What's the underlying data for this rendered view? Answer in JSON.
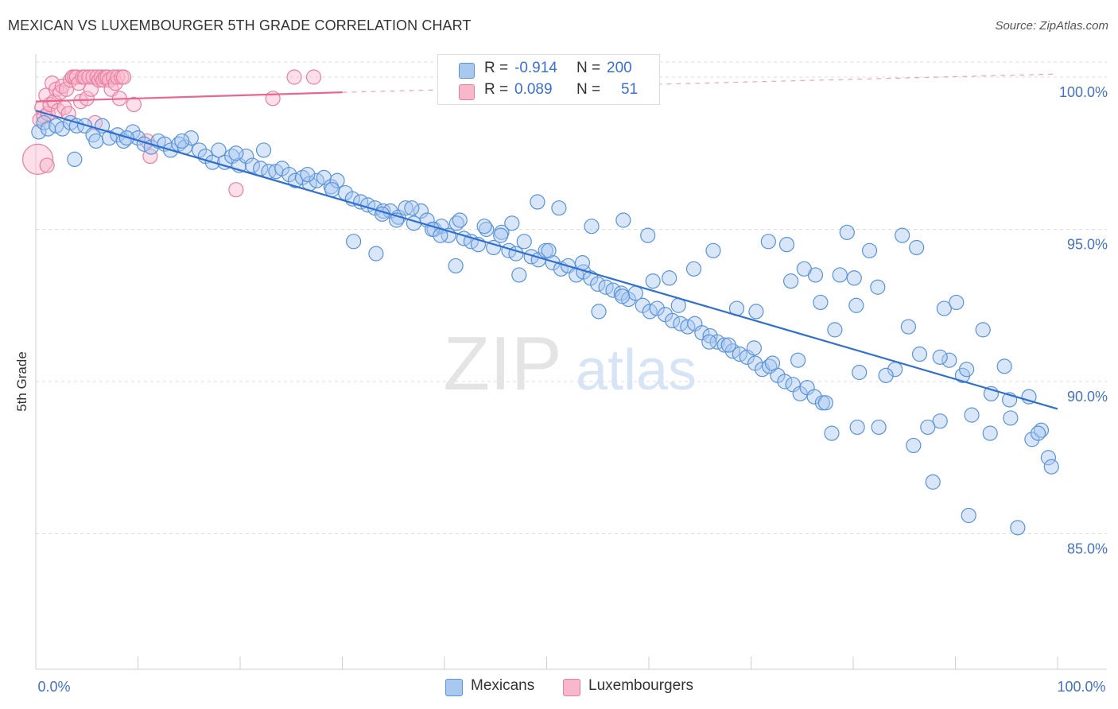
{
  "header": {
    "title": "MEXICAN VS LUXEMBOURGER 5TH GRADE CORRELATION CHART",
    "source": "Source: ZipAtlas.com"
  },
  "watermark": {
    "zip": "ZIP",
    "atlas": "atlas"
  },
  "legend": {
    "rows": [
      {
        "r_label": "R =",
        "r_value": "-0.914",
        "n_label": "N =",
        "n_value": "200",
        "color": "#a8c8f0"
      },
      {
        "r_label": "R =",
        "r_value": "0.089",
        "n_label": "N =",
        "n_value": "51",
        "color": "#f8b8cc"
      }
    ]
  },
  "bottom_legend": {
    "mexicans": "Mexicans",
    "luxembourgers": "Luxembourgers"
  },
  "chart_data": {
    "type": "scatter",
    "title": "MEXICAN VS LUXEMBOURGER 5TH GRADE CORRELATION CHART",
    "xlabel": "",
    "ylabel": "5th Grade",
    "xlim": [
      0,
      100
    ],
    "ylim": [
      80,
      101
    ],
    "x_tick_labels": [
      "0.0%",
      "100.0%"
    ],
    "y_ticks": [
      85,
      90,
      95,
      100
    ],
    "y_tick_labels": [
      "85.0%",
      "90.0%",
      "95.0%",
      "100.0%"
    ],
    "grid": true,
    "legend_position": "top-center",
    "series": [
      {
        "name": "Mexicans",
        "color": "#a8c8f0",
        "stroke": "#5b93d8",
        "R": -0.914,
        "N": 200,
        "trend": {
          "x": [
            0,
            100
          ],
          "y": [
            98.9,
            89.1
          ],
          "color": "#2e6fd1"
        },
        "points": [
          [
            0.3,
            98.2
          ],
          [
            0.8,
            98.5
          ],
          [
            1.2,
            98.3
          ],
          [
            2,
            98.4
          ],
          [
            2.6,
            98.3
          ],
          [
            3.4,
            98.5
          ],
          [
            4,
            98.4
          ],
          [
            4.8,
            98.4
          ],
          [
            5.6,
            98.1
          ],
          [
            5.9,
            97.9
          ],
          [
            6.5,
            98.4
          ],
          [
            7.2,
            98.0
          ],
          [
            8,
            98.1
          ],
          [
            8.6,
            97.9
          ],
          [
            9.5,
            98.2
          ],
          [
            10,
            98.0
          ],
          [
            10.6,
            97.8
          ],
          [
            11.3,
            97.7
          ],
          [
            12,
            97.9
          ],
          [
            12.6,
            97.8
          ],
          [
            13.2,
            97.6
          ],
          [
            14,
            97.8
          ],
          [
            14.6,
            97.7
          ],
          [
            15.2,
            98.0
          ],
          [
            16,
            97.6
          ],
          [
            16.6,
            97.4
          ],
          [
            17.3,
            97.2
          ],
          [
            17.9,
            97.6
          ],
          [
            18.5,
            97.2
          ],
          [
            19.2,
            97.4
          ],
          [
            19.9,
            97.1
          ],
          [
            20.6,
            97.4
          ],
          [
            21.2,
            97.1
          ],
          [
            22,
            97.0
          ],
          [
            22.8,
            96.9
          ],
          [
            23.5,
            96.9
          ],
          [
            24.1,
            97.0
          ],
          [
            24.8,
            96.8
          ],
          [
            25.4,
            96.6
          ],
          [
            26.1,
            96.7
          ],
          [
            26.8,
            96.5
          ],
          [
            27.5,
            96.6
          ],
          [
            28.2,
            96.7
          ],
          [
            28.9,
            96.4
          ],
          [
            29.5,
            96.6
          ],
          [
            30.3,
            96.2
          ],
          [
            31,
            96.0
          ],
          [
            31.8,
            95.9
          ],
          [
            32.5,
            95.8
          ],
          [
            33.2,
            95.7
          ],
          [
            34,
            95.6
          ],
          [
            34.7,
            95.6
          ],
          [
            35.5,
            95.4
          ],
          [
            36.2,
            95.7
          ],
          [
            37,
            95.2
          ],
          [
            37.7,
            95.6
          ],
          [
            38.3,
            95.3
          ],
          [
            39,
            95.0
          ],
          [
            39.7,
            95.1
          ],
          [
            40.4,
            94.8
          ],
          [
            41.2,
            95.2
          ],
          [
            41.9,
            94.7
          ],
          [
            42.6,
            94.6
          ],
          [
            43.3,
            94.5
          ],
          [
            44.1,
            95.0
          ],
          [
            44.8,
            94.4
          ],
          [
            45.6,
            94.9
          ],
          [
            46.3,
            94.3
          ],
          [
            47,
            94.2
          ],
          [
            47.8,
            94.6
          ],
          [
            48.5,
            94.1
          ],
          [
            49.2,
            94.0
          ],
          [
            49.9,
            94.3
          ],
          [
            50.6,
            93.9
          ],
          [
            51.4,
            93.7
          ],
          [
            52.1,
            93.8
          ],
          [
            52.9,
            93.5
          ],
          [
            53.6,
            93.6
          ],
          [
            54.3,
            93.4
          ],
          [
            55,
            93.2
          ],
          [
            55.8,
            93.1
          ],
          [
            56.5,
            93.0
          ],
          [
            57.3,
            92.9
          ],
          [
            58,
            92.7
          ],
          [
            58.7,
            92.9
          ],
          [
            59.4,
            92.5
          ],
          [
            60.1,
            92.3
          ],
          [
            60.8,
            92.4
          ],
          [
            61.6,
            92.2
          ],
          [
            62.3,
            92.0
          ],
          [
            63.1,
            91.9
          ],
          [
            63.8,
            91.8
          ],
          [
            64.5,
            91.9
          ],
          [
            65.2,
            91.6
          ],
          [
            66,
            91.5
          ],
          [
            66.7,
            91.3
          ],
          [
            67.4,
            91.2
          ],
          [
            68.2,
            91.0
          ],
          [
            68.9,
            90.9
          ],
          [
            69.6,
            90.8
          ],
          [
            70.4,
            90.6
          ],
          [
            71.1,
            90.4
          ],
          [
            71.8,
            90.5
          ],
          [
            72.6,
            90.2
          ],
          [
            73.3,
            90.0
          ],
          [
            74.1,
            89.9
          ],
          [
            74.8,
            89.6
          ],
          [
            75.5,
            89.8
          ],
          [
            76.2,
            89.5
          ],
          [
            77,
            89.3
          ],
          [
            3.8,
            97.3
          ],
          [
            8.9,
            98.0
          ],
          [
            14.3,
            97.9
          ],
          [
            19.6,
            97.5
          ],
          [
            22.3,
            97.6
          ],
          [
            26.6,
            96.8
          ],
          [
            29,
            96.3
          ],
          [
            33.9,
            95.5
          ],
          [
            36.8,
            95.7
          ],
          [
            38.8,
            95.0
          ],
          [
            41.5,
            95.3
          ],
          [
            45.5,
            94.8
          ],
          [
            47.3,
            93.5
          ],
          [
            50.2,
            94.3
          ],
          [
            53.5,
            93.9
          ],
          [
            55.1,
            92.3
          ],
          [
            57.4,
            92.8
          ],
          [
            60.4,
            93.3
          ],
          [
            62.9,
            92.5
          ],
          [
            65.9,
            91.3
          ],
          [
            67.8,
            91.2
          ],
          [
            70.3,
            91.1
          ],
          [
            72.1,
            90.6
          ],
          [
            74.6,
            90.7
          ],
          [
            77.3,
            89.3
          ],
          [
            80.6,
            90.3
          ],
          [
            84.1,
            90.4
          ],
          [
            86.5,
            90.9
          ],
          [
            89.4,
            90.7
          ],
          [
            90.7,
            90.2
          ],
          [
            31.1,
            94.6
          ],
          [
            33.3,
            94.2
          ],
          [
            35.3,
            95.3
          ],
          [
            39.6,
            94.8
          ],
          [
            41.1,
            93.8
          ],
          [
            43.9,
            95.1
          ],
          [
            46.6,
            95.2
          ],
          [
            49.1,
            95.9
          ],
          [
            51.2,
            95.7
          ],
          [
            54.4,
            95.1
          ],
          [
            57.5,
            95.3
          ],
          [
            59.9,
            94.8
          ],
          [
            62,
            93.4
          ],
          [
            64.4,
            93.7
          ],
          [
            66.3,
            94.3
          ],
          [
            68.6,
            92.4
          ],
          [
            70.5,
            92.3
          ],
          [
            73.9,
            93.3
          ],
          [
            76.3,
            93.5
          ],
          [
            78.7,
            93.5
          ],
          [
            80.3,
            92.5
          ],
          [
            82.4,
            93.1
          ],
          [
            84.8,
            94.8
          ],
          [
            86.2,
            94.4
          ],
          [
            88.9,
            92.4
          ],
          [
            91.1,
            90.4
          ],
          [
            93.4,
            88.3
          ],
          [
            95.4,
            88.8
          ],
          [
            97.5,
            88.1
          ],
          [
            98.4,
            88.4
          ],
          [
            77.9,
            88.3
          ],
          [
            80.4,
            88.5
          ],
          [
            82.5,
            88.5
          ],
          [
            85.9,
            87.9
          ],
          [
            88.5,
            88.7
          ],
          [
            87.3,
            88.5
          ],
          [
            91.6,
            88.9
          ],
          [
            93.5,
            89.6
          ],
          [
            95.3,
            89.4
          ],
          [
            98.1,
            88.3
          ],
          [
            87.8,
            86.7
          ],
          [
            91.3,
            85.6
          ],
          [
            96.1,
            85.2
          ],
          [
            99.1,
            87.5
          ],
          [
            99.4,
            87.2
          ],
          [
            97.2,
            89.5
          ],
          [
            94.8,
            90.5
          ],
          [
            92.7,
            91.7
          ],
          [
            90.1,
            92.6
          ],
          [
            88.5,
            90.8
          ],
          [
            78.2,
            91.7
          ],
          [
            80.1,
            93.4
          ],
          [
            79.4,
            94.9
          ],
          [
            81.6,
            94.3
          ],
          [
            83.2,
            90.2
          ],
          [
            85.4,
            91.8
          ],
          [
            76.8,
            92.6
          ],
          [
            75.2,
            93.7
          ],
          [
            73.5,
            94.5
          ],
          [
            71.7,
            94.6
          ]
        ]
      },
      {
        "name": "Luxembourgers",
        "color": "#f8b8cc",
        "stroke": "#e87fa2",
        "R": 0.089,
        "N": 51,
        "trend": {
          "x": [
            0,
            30,
            100
          ],
          "y": [
            99.2,
            99.5,
            100.1
          ],
          "color": "#e8668f"
        },
        "points": [
          [
            0.2,
            97.3
          ],
          [
            0.4,
            98.6
          ],
          [
            0.6,
            99.0
          ],
          [
            0.8,
            98.7
          ],
          [
            1.0,
            99.4
          ],
          [
            1.2,
            98.8
          ],
          [
            1.4,
            99.1
          ],
          [
            1.6,
            99.8
          ],
          [
            1.8,
            99.2
          ],
          [
            2.0,
            99.6
          ],
          [
            2.2,
            98.9
          ],
          [
            2.4,
            99.5
          ],
          [
            2.6,
            99.7
          ],
          [
            2.8,
            99.0
          ],
          [
            3.0,
            99.6
          ],
          [
            3.2,
            98.8
          ],
          [
            3.4,
            99.9
          ],
          [
            3.6,
            100.0
          ],
          [
            3.8,
            100.0
          ],
          [
            4.0,
            100.0
          ],
          [
            4.2,
            99.8
          ],
          [
            4.4,
            99.2
          ],
          [
            4.6,
            100.0
          ],
          [
            4.8,
            100.0
          ],
          [
            5.0,
            99.3
          ],
          [
            5.2,
            100.0
          ],
          [
            5.4,
            99.6
          ],
          [
            5.6,
            100.0
          ],
          [
            5.8,
            98.5
          ],
          [
            6.0,
            100.0
          ],
          [
            6.2,
            99.9
          ],
          [
            6.4,
            100.0
          ],
          [
            6.6,
            99.9
          ],
          [
            6.8,
            100.0
          ],
          [
            7.0,
            100.0
          ],
          [
            7.2,
            99.9
          ],
          [
            7.4,
            99.6
          ],
          [
            7.6,
            100.0
          ],
          [
            7.8,
            99.8
          ],
          [
            8.0,
            100.0
          ],
          [
            8.2,
            99.3
          ],
          [
            8.4,
            100.0
          ],
          [
            8.6,
            100.0
          ],
          [
            9.6,
            99.1
          ],
          [
            10.9,
            97.9
          ],
          [
            11.2,
            97.4
          ],
          [
            19.6,
            96.3
          ],
          [
            23.2,
            99.3
          ],
          [
            25.3,
            100.0
          ],
          [
            27.2,
            100.0
          ],
          [
            1.1,
            97.1
          ]
        ]
      }
    ]
  }
}
